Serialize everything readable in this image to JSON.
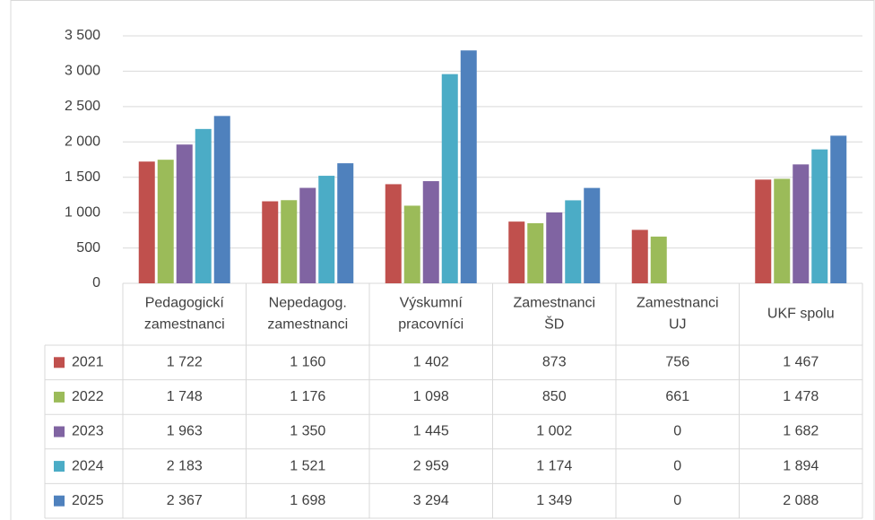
{
  "chart_data": {
    "type": "bar",
    "categories": [
      [
        "Pedagogickí",
        "zamestnanci"
      ],
      [
        "Nepedagog.",
        "zamestnanci"
      ],
      [
        "Výskumní",
        "pracovníci"
      ],
      [
        "Zamestnanci",
        "ŠD"
      ],
      [
        "Zamestnanci",
        "UJ"
      ],
      [
        "UKF spolu"
      ]
    ],
    "series": [
      {
        "name": "2021",
        "color": "#c0504d",
        "values": [
          1722,
          1160,
          1402,
          873,
          756,
          1467
        ],
        "value_labels": [
          "1 722",
          "1 160",
          "1 402",
          "873",
          "756",
          "1 467"
        ]
      },
      {
        "name": "2022",
        "color": "#9bbb59",
        "values": [
          1748,
          1176,
          1098,
          850,
          661,
          1478
        ],
        "value_labels": [
          "1 748",
          "1 176",
          "1 098",
          "850",
          "661",
          "1 478"
        ]
      },
      {
        "name": "2023",
        "color": "#8064a2",
        "values": [
          1963,
          1350,
          1445,
          1002,
          0,
          1682
        ],
        "value_labels": [
          "1 963",
          "1 350",
          "1 445",
          "1 002",
          "0",
          "1 682"
        ]
      },
      {
        "name": "2024",
        "color": "#4bacc6",
        "values": [
          2183,
          1521,
          2959,
          1174,
          0,
          1894
        ],
        "value_labels": [
          "2 183",
          "1 521",
          "2 959",
          "1 174",
          "0",
          "1 894"
        ]
      },
      {
        "name": "2025",
        "color": "#4f81bd",
        "values": [
          2367,
          1698,
          3294,
          1349,
          0,
          2088
        ],
        "value_labels": [
          "2 367",
          "1 698",
          "3 294",
          "1 349",
          "0",
          "2 088"
        ]
      }
    ],
    "ylim": [
      0,
      3500
    ],
    "yticks": [
      0,
      500,
      {
        "value": 1000,
        "label": "1 000"
      },
      {
        "value": 1500,
        "label": "1 500"
      },
      {
        "value": 2000,
        "label": "2 000"
      },
      {
        "value": 2500,
        "label": "2 500"
      },
      {
        "value": 3000,
        "label": "3 000"
      },
      {
        "value": 3500,
        "label": "3 500"
      }
    ],
    "grid": true,
    "legend": "table"
  }
}
